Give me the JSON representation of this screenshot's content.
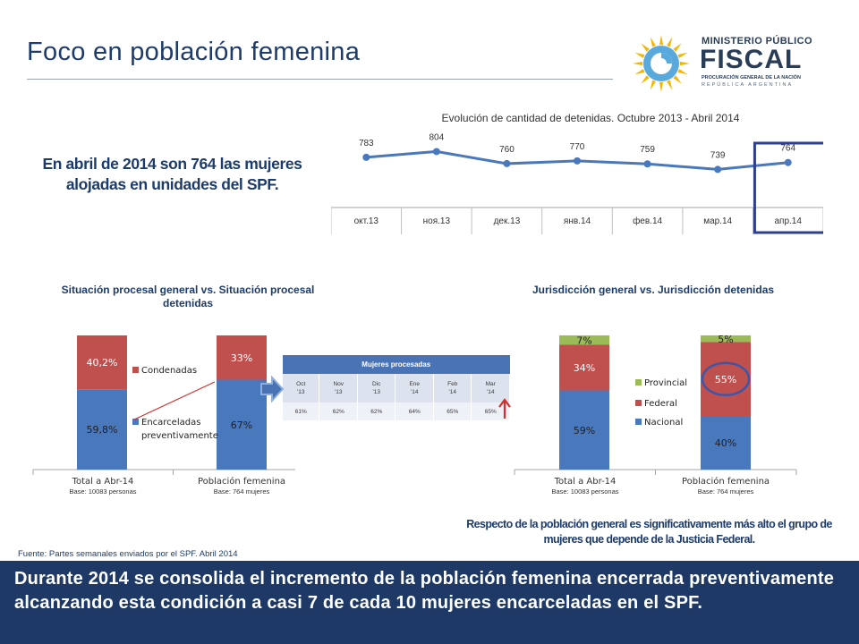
{
  "header": {
    "title": "Foco en población femenina",
    "logo": {
      "ministry": "MINISTERIO PÚBLICO",
      "name": "FISCAL",
      "line1": "PROCURACIÓN GENERAL DE LA NACIÓN",
      "line2": "REPÚBLICA ARGENTINA",
      "icon": "sun-emblem-icon"
    }
  },
  "headline": "En abril de 2014 son 764 las mujeres alojadas en unidades del SPF.",
  "colors": {
    "blue": "#4a78bd",
    "red": "#c0504d",
    "green": "#9bbb59",
    "navy": "#1f3966",
    "highlight": "#2f3f8f"
  },
  "chart_data": [
    {
      "type": "line",
      "title": "Evolución de cantidad de detenidas. Octubre 2013 - Abril 2014",
      "categories": [
        "окт.13",
        "ноя.13",
        "дек.13",
        "янв.14",
        "фев.14",
        "мар.14",
        "апр.14"
      ],
      "values": [
        783,
        804,
        760,
        770,
        759,
        739,
        764
      ],
      "highlighted_category": "апр.14",
      "data_labels": true,
      "ylim": [
        600,
        900
      ]
    },
    {
      "type": "bar",
      "stacked": true,
      "title": "Situación procesal general vs. Situación procesal detenidas",
      "categories": [
        "Total a Abr-14",
        "Población femenina"
      ],
      "category_notes": [
        "Base: 10083 personas",
        "Base: 764 mujeres"
      ],
      "series": [
        {
          "name": "Encarceladas preventivamente",
          "values": [
            59.8,
            67
          ],
          "labels": [
            "59,8%",
            "67%"
          ]
        },
        {
          "name": "Condenadas",
          "values": [
            40.2,
            33
          ],
          "labels": [
            "40,2%",
            "33%"
          ]
        }
      ],
      "ylim": [
        0,
        100
      ]
    },
    {
      "type": "bar",
      "stacked": true,
      "title": "Jurisdicción general vs. Jurisdicción detenidas",
      "categories": [
        "Total a Abr-14",
        "Población femenina"
      ],
      "category_notes": [
        "Base: 10083 personas",
        "Base: 764 mujeres"
      ],
      "series": [
        {
          "name": "Nacional",
          "values": [
            59,
            40
          ],
          "labels": [
            "59%",
            "40%"
          ]
        },
        {
          "name": "Federal",
          "values": [
            34,
            55
          ],
          "labels": [
            "34%",
            "55%"
          ]
        },
        {
          "name": "Provincial",
          "values": [
            7,
            5
          ],
          "labels": [
            "7%",
            "5%"
          ]
        }
      ],
      "ylim": [
        0,
        100
      ]
    },
    {
      "type": "table",
      "title": "Mujeres procesadas",
      "columns": [
        "Oct '13",
        "Nov '13",
        "Dic '13",
        "Ene '14",
        "Feb '14",
        "Mar '14"
      ],
      "rows": [
        [
          "61%",
          "62%",
          "62%",
          "64%",
          "65%",
          "65%"
        ]
      ]
    }
  ],
  "note_right": "Respecto de la población general es significativamente más alto el grupo de mujeres que depende de la Justicia Federal.",
  "source": "Fuente: Partes semanales enviados por el SPF. Abril 2014",
  "footer": "Durante 2014 se consolida el incremento de la población femenina encerrada preventivamente alcanzando esta condición a casi 7 de cada 10 mujeres encarceladas en el SPF."
}
